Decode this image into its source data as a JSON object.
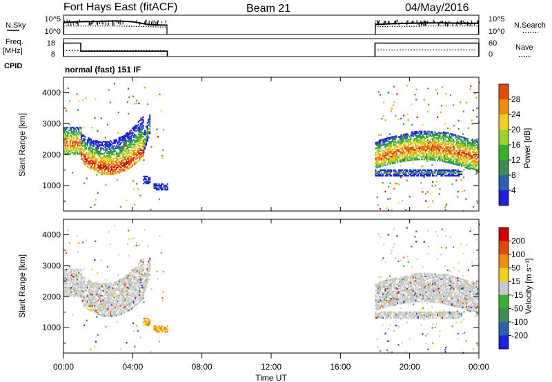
{
  "header": {
    "station_title": "Fort Hays East (fitACF)",
    "beam": "Beam 21",
    "date": "04/May/2016"
  },
  "side_labels": {
    "nsky": "N.Sky",
    "freq": "Freq.",
    "freq_unit": "[MHz]",
    "cpid": "CPID",
    "nsearch": "N.Search",
    "nave": "Nave",
    "nsky_ticks": [
      "10^5",
      "10^0"
    ],
    "nsearch_ticks": [
      "10^5",
      "10^0"
    ],
    "freq_ticks": [
      "18",
      "8"
    ],
    "nave_ticks": [
      "60",
      "0"
    ]
  },
  "cpid_text": "normal (fast) 151 IF",
  "x_axis": {
    "label": "Time UT",
    "ticks": [
      "00:00",
      "04:00",
      "08:00",
      "12:00",
      "16:00",
      "20:00",
      "00:00"
    ],
    "tick_hours": [
      0,
      4,
      8,
      12,
      16,
      20,
      24
    ]
  },
  "colors": {
    "power": [
      "#1f1fe0",
      "#2b5fb0",
      "#3e8c55",
      "#36b02e",
      "#a0d030",
      "#f0d020",
      "#f08c10",
      "#e04a08",
      "#d00000"
    ],
    "velocity": [
      "#1f1fe0",
      "#2b5fb0",
      "#3e8c55",
      "#36b02e",
      "#c8c8c8",
      "#f0d020",
      "#f08c10",
      "#e04a08",
      "#d00000"
    ],
    "ground_scatter": "#c8c8c8"
  },
  "chart_data": [
    {
      "type": "line",
      "panel": "N.Sky / N.Search",
      "x_unit": "hours UT",
      "series": [
        {
          "name": "N.Sky",
          "x": [
            0,
            0.2,
            1.0,
            2.0,
            3.0,
            4.0,
            4.5,
            5.0,
            6.0,
            18.0,
            19.0,
            20.0,
            21.0,
            22.0,
            23.0,
            24.0
          ],
          "y_log10": [
            3.0,
            3.2,
            3.3,
            3.4,
            3.5,
            3.3,
            2.9,
            2.5,
            2.4,
            2.6,
            2.8,
            2.9,
            3.0,
            3.0,
            2.9,
            2.9
          ]
        },
        {
          "name": "N.Search",
          "x": [
            0,
            1.0,
            2.0,
            3.0,
            4.0,
            5.0,
            6.0,
            18.0,
            19.0,
            20.0,
            21.0,
            22.0,
            23.0,
            24.0
          ],
          "y_log10": [
            2.2,
            2.2,
            2.2,
            2.2,
            2.1,
            2.0,
            1.9,
            2.0,
            2.1,
            2.1,
            2.2,
            2.2,
            2.2,
            2.2
          ]
        }
      ]
    },
    {
      "type": "line",
      "panel": "Freq / Nave",
      "x_unit": "hours UT",
      "series": [
        {
          "name": "Freq.",
          "x": [
            0,
            1.0,
            1.0,
            6.0,
            18.0,
            24.0
          ],
          "y": [
            15.5,
            15.5,
            11.0,
            11.0,
            15.5,
            15.5
          ]
        },
        {
          "name": "Nave",
          "x": [
            0,
            6.0,
            18.0,
            24.0
          ],
          "y": [
            20,
            20,
            22,
            22
          ]
        }
      ]
    },
    {
      "type": "heatmap",
      "panel": "Power",
      "colorbar_label": "Power [dB]",
      "colorbar_ticks": [
        "28",
        "24",
        "20",
        "16",
        "12",
        "8",
        "4"
      ],
      "colorbar_values": [
        28,
        24,
        20,
        16,
        12,
        8,
        4
      ],
      "ylabel": "Slant Range [km]",
      "y_ticks": [
        "4000",
        "3000",
        "2000",
        "1000"
      ],
      "y_tick_values": [
        4000,
        3000,
        2000,
        1000
      ],
      "ylim": [
        180,
        4500
      ],
      "xlim": [
        0,
        24
      ],
      "bands": [
        {
          "x0": 0.0,
          "x1": 1.0,
          "lo": 2000,
          "hi": 2900,
          "core": 2350,
          "core_db": 24
        },
        {
          "x0": 1.0,
          "x1": 4.6,
          "lo": 1350,
          "hi": 2300,
          "core": 1550,
          "core_db": 26
        },
        {
          "x0": 4.6,
          "x1": 5.0,
          "lo": 2100,
          "hi": 3300,
          "core": 2400,
          "core_db": 14
        },
        {
          "x0": 4.6,
          "x1": 5.0,
          "lo": 1050,
          "hi": 1300,
          "core": 1150,
          "core_db": 8
        },
        {
          "x0": 5.2,
          "x1": 6.0,
          "lo": 850,
          "hi": 1050,
          "core": 950,
          "core_db": 6
        },
        {
          "x0": 18.0,
          "x1": 24.0,
          "lo": 1550,
          "hi": 2600,
          "core": 2000,
          "core_db": 24
        },
        {
          "x0": 18.0,
          "x1": 23.0,
          "lo": 1300,
          "hi": 1500,
          "core": 1400,
          "core_db": 10
        }
      ]
    },
    {
      "type": "heatmap",
      "panel": "Velocity",
      "colorbar_label": "Velocity [m s⁻¹]",
      "colorbar_ticks": [
        "200",
        "100",
        "50",
        "15",
        "-15",
        "-50",
        "-100",
        "-200"
      ],
      "colorbar_values": [
        200,
        100,
        50,
        15,
        -15,
        -50,
        -100,
        -200
      ],
      "ylabel": "Slant Range [km]",
      "y_ticks": [
        "4000",
        "3000",
        "2000",
        "1000"
      ],
      "y_tick_values": [
        4000,
        3000,
        2000,
        1000
      ],
      "ylim": [
        180,
        4500
      ],
      "xlim": [
        0,
        24
      ],
      "note_ground_scatter_dominant": true
    }
  ]
}
